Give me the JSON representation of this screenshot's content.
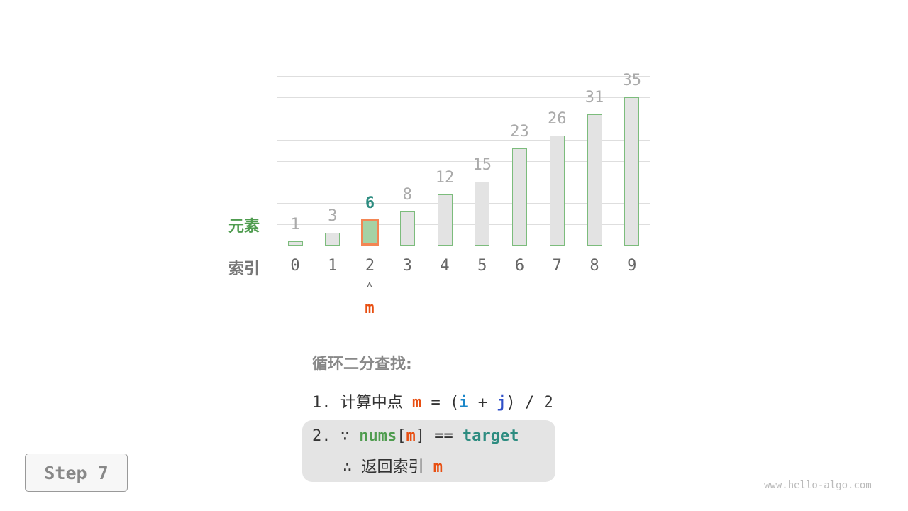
{
  "chart_data": {
    "type": "bar",
    "categories": [
      "0",
      "1",
      "2",
      "3",
      "4",
      "5",
      "6",
      "7",
      "8",
      "9"
    ],
    "values": [
      1,
      3,
      6,
      8,
      12,
      15,
      23,
      26,
      31,
      35
    ],
    "highlight_index": 2,
    "ylim": [
      0,
      40
    ],
    "grid": true
  },
  "labels": {
    "element": "元素",
    "index": "索引"
  },
  "pointer": {
    "arrow": "˄",
    "name": "m"
  },
  "steps": {
    "title": "循环二分查找:",
    "s1": {
      "num": "1.",
      "text": "计算中点",
      "m": "m",
      "eq": "= (",
      "i": "i",
      "plus": "+",
      "j": "j",
      "rest": ") / 2"
    },
    "s2": {
      "num": "2.",
      "because": "∵",
      "nums": "nums",
      "lb": "[",
      "m": "m",
      "rb": "]",
      "eq": "==",
      "target": "target",
      "therefore": "∴",
      "text": "返回索引",
      "m2": "m"
    }
  },
  "step_button": "Step 7",
  "watermark": "www.hello-algo.com",
  "colors": {
    "bar": "#e3e3e3",
    "bar_border": "#7cbc7c",
    "highlight_fill": "#a5d2a5",
    "highlight_border": "#f38654",
    "m": "#e84f12",
    "i": "#1b87c9",
    "j": "#2e4fc8",
    "element_label": "#4f9c4f"
  }
}
